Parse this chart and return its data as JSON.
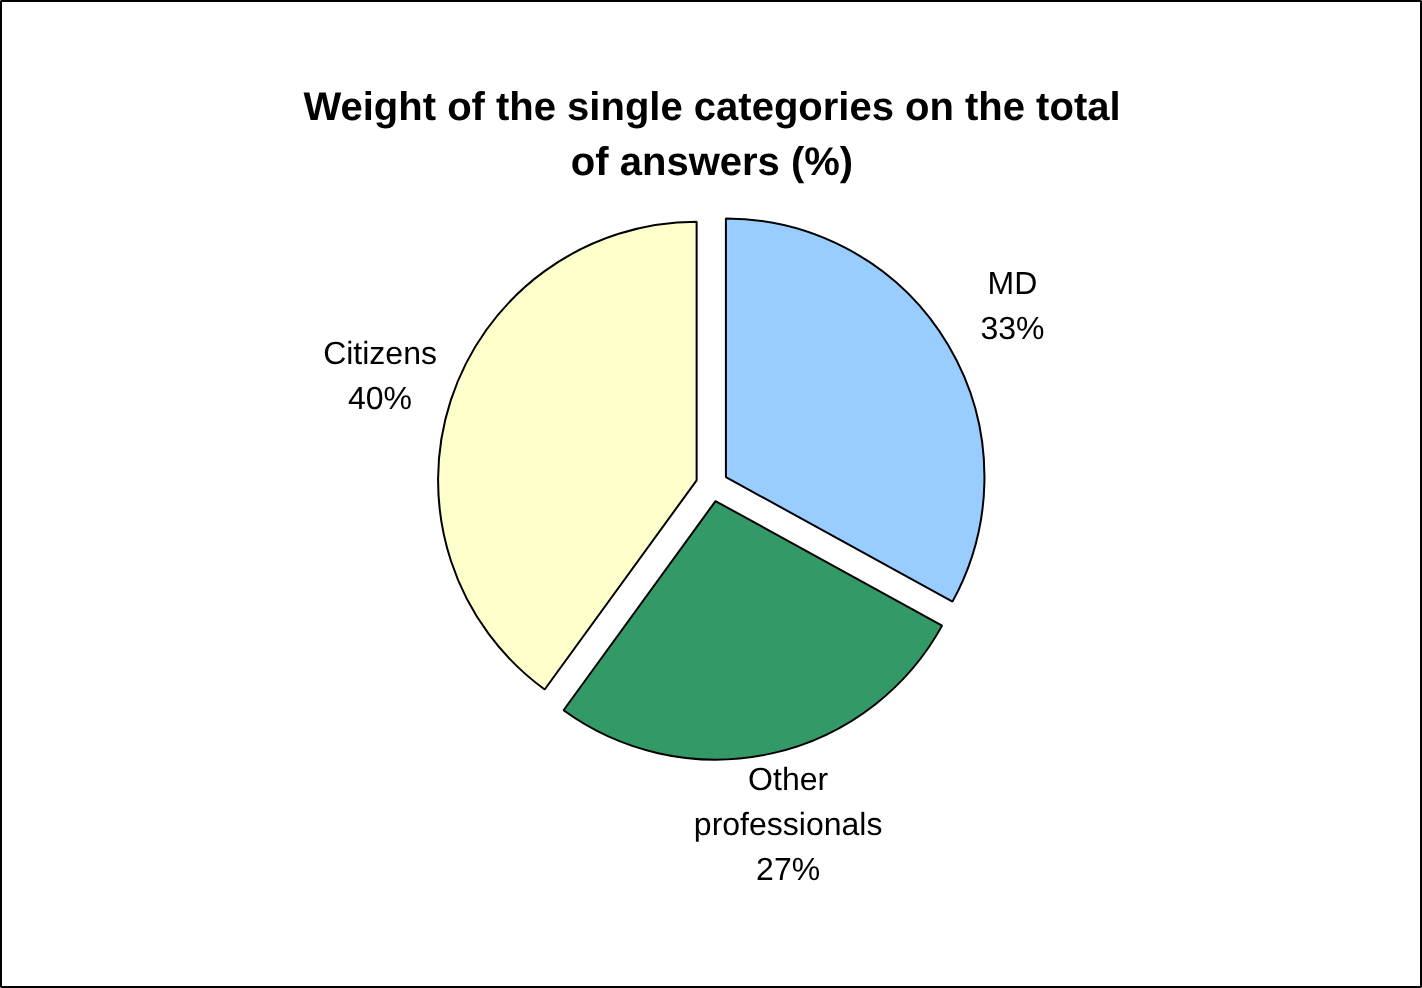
{
  "chart_data": {
    "type": "pie",
    "title": "Weight of the single categories on the total of answers (%)",
    "categories": [
      "MD",
      "Other professionals",
      "Citizens"
    ],
    "values": [
      33,
      27,
      40
    ],
    "colors": [
      "#99ccff",
      "#339966",
      "#ffffcc"
    ],
    "value_labels": [
      "33%",
      "27%",
      "40%"
    ]
  }
}
